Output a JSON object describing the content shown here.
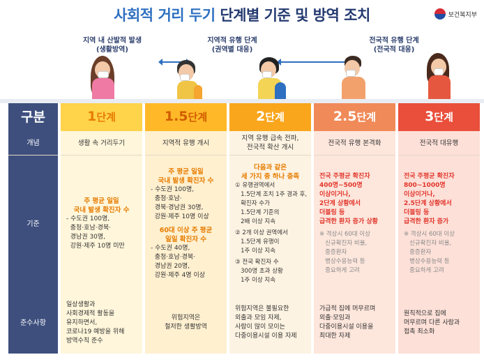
{
  "header": {
    "title_part1": "사회적 거리 두기",
    "title_part2": "단계별 기준 및 방역 조치",
    "agency": "보건복지부"
  },
  "phases": {
    "left": "지역 내 산발적 발생\n(생활방역)",
    "mid": "지역적 유행 단계\n(권역별 대응)",
    "right": "전국적 유행 단계\n(전국적 대응)"
  },
  "table": {
    "row_labels": {
      "stage": "구분",
      "concept": "개념",
      "criteria": "기준",
      "compliance": "준수사항"
    },
    "stages": [
      {
        "num": "1",
        "suffix": "단계"
      },
      {
        "num": "1.5",
        "suffix": "단계"
      },
      {
        "num": "2",
        "suffix": "단계"
      },
      {
        "num": "2.5",
        "suffix": "단계"
      },
      {
        "num": "3",
        "suffix": "단계"
      }
    ],
    "concepts": [
      "생활 속 거리두기",
      "지역적 유행 개시",
      "지역 유행 급속 전파,\n전국적 확산 개시",
      "전국적 유행 본격화",
      "전국적 대유행"
    ],
    "criteria": {
      "s1_head": "주 평균 일일\n국내 발생 확진자 수",
      "s1_body": "- 수도권 100명,\n  충청·호남·경북·\n  경남권 30명,\n  강원·제주 10명 미만",
      "s15_head1": "주 평균 일일\n국내 발생 확진자 수",
      "s15_body1": "- 수도권 100명,\n  충청·호남·\n  경북·경남권 30명,\n  강원·제주 10명 이상",
      "s15_head2": "60대 이상 주 평균\n일일 확진자 수",
      "s15_body2": "- 수도권 40명,\n  충청·호남·경북·\n  경남권 20명,\n  강원·제주 4명 이상",
      "s2_head": "다음과 같은\n세 가지 중 하나 충족",
      "s2_item1": "① 유행권역에서\n   1.5단계 조치 1주 경과 후,\n   확진자 수가\n   1.5단계 기준의\n   2배 이상 지속",
      "s2_item2": "② 2개 이상 권역에서\n   1.5단계 유행이\n   1주 이상 지속",
      "s2_item3": "③ 전국 확진자 수\n   300명 초과 상황\n   1주 이상 지속",
      "s25_head": "전국 주평균 확진자\n400명~500명\n이상이거나,\n2단계 상황에서\n더블링 등\n급격한 환자 증가 상황",
      "s25_note": "※ 격상시 60대 이상\n   신규확진자 비율,\n   중증환자\n   병상수용능력 등\n   중요하게 고려",
      "s3_head": "전국 주평균 확진자\n800~1000명\n이상이거나,\n2.5단계 상황에서\n더블링 등\n급격한 환자 증가",
      "s3_note": "※ 격상시 60대 이상\n   신규확진자 비율,\n   중증환자\n   병상수용능력 등\n   중요하게 고려"
    },
    "compliance": [
      "일상생활과\n사회경제적 활동을\n유지하면서,\n코로나19 예방을 위해\n방역수칙 준수",
      "위험지역은\n철저한 생활방역",
      "위험지역은 불필요한\n외출과 모임 자제,\n사람이 많이 모이는\n다중이용시설 이용 자제",
      "가급적 집에 머무르며\n외출·모임과\n다중이용시설 이용을\n최대한 자제",
      "원칙적으로 집에\n머무르며 다른 사람과\n접촉 최소화"
    ]
  },
  "colors": {
    "navy": "#3e4f7e",
    "blue": "#2d6fc0",
    "orange": "#e67c00",
    "red": "#e1352b"
  }
}
